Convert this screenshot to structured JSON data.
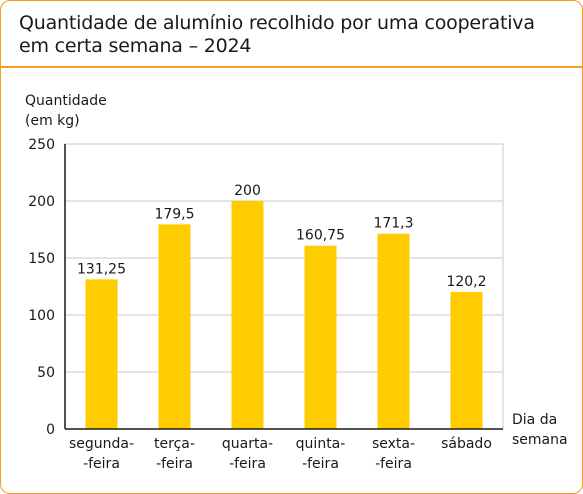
{
  "title": "Quantidade de alumínio recolhido por uma cooperativa em certa semana – 2024",
  "chart_data": {
    "type": "bar",
    "title": "Quantidade de alumínio recolhido por uma cooperativa em certa semana – 2024",
    "ylabel": [
      "Quantidade",
      "(em kg)"
    ],
    "xlabel": [
      "Dia da",
      "semana"
    ],
    "ylim": [
      0,
      250
    ],
    "yticks": [
      0,
      50,
      100,
      150,
      200,
      250
    ],
    "categories": [
      [
        "segunda-",
        "-feira"
      ],
      [
        "terça-",
        "-feira"
      ],
      [
        "quarta-",
        "-feira"
      ],
      [
        "quinta-",
        "-feira"
      ],
      [
        "sexta-",
        "-feira"
      ],
      [
        "sábado"
      ]
    ],
    "values": [
      131.25,
      179.5,
      200,
      160.75,
      171.3,
      120.2
    ],
    "value_labels": [
      "131,25",
      "179,5",
      "200",
      "160,75",
      "171,3",
      "120,2"
    ],
    "grid": true,
    "bar_color": "#ffcc00"
  },
  "colors": {
    "frame": "#f0a020",
    "grid": "#c8c8c8",
    "axis": "#1a1a1a"
  }
}
